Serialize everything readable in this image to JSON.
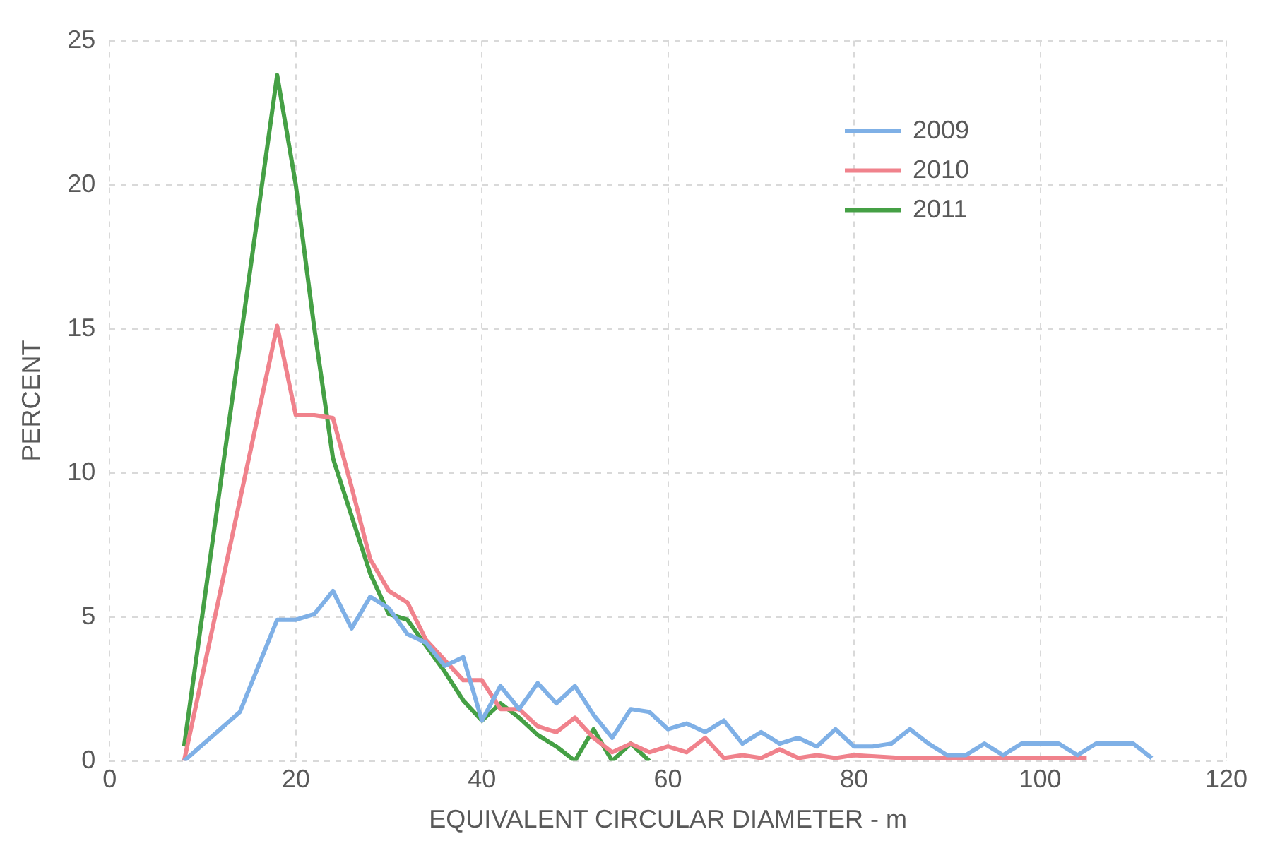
{
  "chart_data": {
    "type": "line",
    "xlabel": "EQUIVALENT CIRCULAR DIAMETER - m",
    "ylabel": "PERCENT",
    "xlim": [
      0,
      120
    ],
    "xticks": [
      0,
      20,
      40,
      60,
      80,
      100,
      120
    ],
    "ylim": [
      0,
      25
    ],
    "yticks": [
      0,
      5,
      10,
      15,
      20,
      25
    ],
    "grid": true,
    "legend": "top right",
    "marker": "none",
    "line_style": "solid",
    "series": [
      {
        "name": "2009",
        "color": "#7fb0e6",
        "x": [
          8,
          14,
          18,
          20,
          22,
          24,
          26,
          28,
          30,
          32,
          34,
          36,
          38,
          40,
          42,
          44,
          46,
          48,
          50,
          52,
          54,
          56,
          58,
          60,
          62,
          64,
          66,
          68,
          70,
          72,
          74,
          76,
          78,
          80,
          82,
          84,
          86,
          88,
          90,
          92,
          94,
          96,
          98,
          100,
          102,
          104,
          106,
          108,
          110,
          112
        ],
        "values": [
          0,
          1.7,
          4.9,
          4.9,
          5.1,
          5.9,
          4.6,
          5.7,
          5.3,
          4.4,
          4.1,
          3.3,
          3.6,
          1.4,
          2.6,
          1.8,
          2.7,
          2.0,
          2.6,
          1.6,
          0.8,
          1.8,
          1.7,
          1.1,
          1.3,
          1.0,
          1.4,
          0.6,
          1.0,
          0.6,
          0.8,
          0.5,
          1.1,
          0.5,
          0.5,
          0.6,
          1.1,
          0.6,
          0.2,
          0.2,
          0.6,
          0.2,
          0.6,
          0.6,
          0.6,
          0.2,
          0.6,
          0.6,
          0.6,
          0.1
        ]
      },
      {
        "name": "2010",
        "color": "#f0828c",
        "x": [
          8,
          18,
          20,
          22,
          24,
          26,
          28,
          30,
          32,
          34,
          36,
          38,
          40,
          42,
          44,
          46,
          48,
          50,
          52,
          54,
          56,
          58,
          60,
          62,
          64,
          66,
          68,
          70,
          72,
          74,
          76,
          78,
          80,
          85,
          90,
          95,
          100,
          105
        ],
        "values": [
          0,
          15.1,
          12.0,
          12.0,
          11.9,
          9.5,
          7.0,
          5.9,
          5.5,
          4.2,
          3.5,
          2.8,
          2.8,
          1.8,
          1.8,
          1.2,
          1.0,
          1.5,
          0.8,
          0.3,
          0.6,
          0.3,
          0.5,
          0.3,
          0.8,
          0.1,
          0.2,
          0.1,
          0.4,
          0.1,
          0.2,
          0.1,
          0.2,
          0.1,
          0.1,
          0.1,
          0.1,
          0.1
        ]
      },
      {
        "name": "2011",
        "color": "#45a045",
        "x": [
          8,
          18,
          20,
          22,
          24,
          26,
          28,
          30,
          32,
          34,
          36,
          38,
          40,
          42,
          44,
          46,
          48,
          50,
          52,
          54,
          56,
          58
        ],
        "values": [
          0.5,
          23.8,
          20.0,
          15.0,
          10.5,
          8.5,
          6.5,
          5.1,
          4.9,
          4.0,
          3.1,
          2.1,
          1.4,
          2.0,
          1.5,
          0.9,
          0.5,
          0.0,
          1.1,
          0.0,
          0.6,
          0.0
        ]
      }
    ]
  }
}
